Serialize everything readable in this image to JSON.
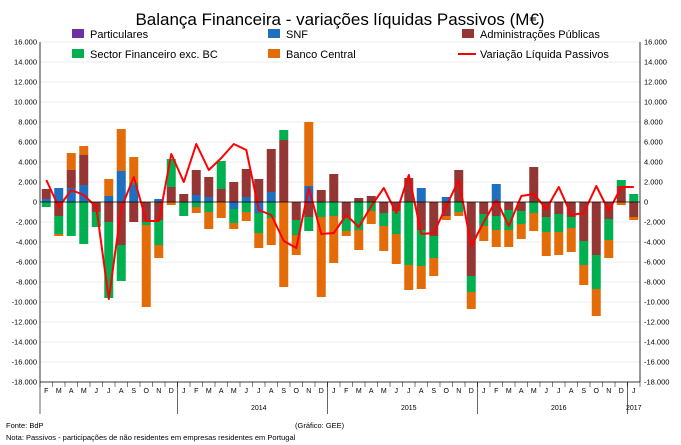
{
  "chart_data": {
    "type": "bar",
    "title": "Balança Financeira - variações líquidas Passivos (M€)",
    "ylim": [
      -18000,
      16000
    ],
    "yticks": [
      16000,
      14000,
      12000,
      10000,
      8000,
      6000,
      4000,
      2000,
      0,
      -2000,
      -4000,
      -6000,
      -8000,
      -10000,
      -12000,
      -14000,
      -16000,
      -18000
    ],
    "ytick_labels": [
      "16.000",
      "14.000",
      "12.000",
      "10.000",
      "8.000",
      "6.000",
      "4.000",
      "2.000",
      "0",
      "-2.000",
      "-4.000",
      "-6.000",
      "-8.000",
      "-10.000",
      "-12.000",
      "-14.000",
      "-16.000",
      "-18.000"
    ],
    "categories": [
      "F",
      "M",
      "A",
      "M",
      "J",
      "J",
      "A",
      "S",
      "O",
      "N",
      "D",
      "J",
      "F",
      "M",
      "A",
      "M",
      "J",
      "J",
      "A",
      "S",
      "O",
      "N",
      "D",
      "J",
      "F",
      "M",
      "A",
      "M",
      "J",
      "J",
      "A",
      "S",
      "O",
      "N",
      "D",
      "J",
      "F",
      "M",
      "A",
      "M",
      "J",
      "J",
      "A",
      "S",
      "O",
      "N",
      "D",
      "J"
    ],
    "year_labels": [
      {
        "label": "2014",
        "index": 17
      },
      {
        "label": "2015",
        "index": 29
      },
      {
        "label": "2016",
        "index": 41
      },
      {
        "label": "2017",
        "index": 47
      }
    ],
    "series": [
      {
        "name": "Particulares",
        "color": "#7030a0",
        "values": [
          0,
          0,
          0,
          0,
          0,
          0,
          0,
          0,
          0,
          0,
          0,
          0,
          0,
          0,
          0,
          0,
          0,
          0,
          0,
          0,
          0,
          0,
          0,
          0,
          0,
          0,
          0,
          0,
          0,
          0,
          0,
          0,
          0,
          0,
          0,
          0,
          0,
          0,
          0,
          0,
          0,
          0,
          0,
          0,
          0,
          0,
          0,
          0
        ]
      },
      {
        "name": "SNF",
        "color": "#1f6fbf",
        "values": [
          300,
          1400,
          1400,
          1700,
          0,
          600,
          3100,
          1700,
          0,
          300,
          0,
          0,
          700,
          500,
          0,
          -700,
          500,
          -1100,
          1000,
          0,
          0,
          1600,
          0,
          0,
          0,
          0,
          0,
          0,
          0,
          0,
          1400,
          0,
          500,
          0,
          0,
          0,
          1800,
          0,
          0,
          0,
          0,
          0,
          0,
          0,
          0,
          0,
          0,
          0
        ]
      },
      {
        "name": "Administrações Públicas",
        "color": "#943634",
        "values": [
          1000,
          -1400,
          1800,
          3000,
          -1000,
          -2000,
          -4300,
          -2000,
          -2000,
          -1800,
          1500,
          800,
          2500,
          2000,
          1300,
          2000,
          2800,
          2300,
          4300,
          6200,
          -1800,
          -1500,
          1200,
          2800,
          -1600,
          400,
          600,
          -1100,
          -900,
          2400,
          -2800,
          -3400,
          -1400,
          3200,
          -7400,
          -1200,
          -1400,
          -800,
          -900,
          3500,
          -1500,
          -1200,
          -1500,
          -3900,
          -5300,
          -1700,
          1600,
          -1500
        ]
      },
      {
        "name": "Sector Financeiro exc. BC",
        "color": "#00b050",
        "values": [
          -500,
          -1800,
          -3400,
          -4200,
          -1500,
          -7600,
          -3600,
          200,
          -300,
          -2500,
          2800,
          -1400,
          -500,
          -1000,
          2800,
          -1400,
          -1000,
          -2000,
          -1600,
          1000,
          -1500,
          -1400,
          -1500,
          -1400,
          -1300,
          -2800,
          -900,
          -1300,
          -2300,
          -6300,
          -3600,
          -2200,
          0,
          -1000,
          -1600,
          -1200,
          -1400,
          -2000,
          -1300,
          -1100,
          -1500,
          -1800,
          -1100,
          -2400,
          -3400,
          -2100,
          600,
          800
        ]
      },
      {
        "name": "Banco Central",
        "color": "#e36c09",
        "values": [
          0,
          -200,
          1700,
          900,
          0,
          1700,
          4200,
          2600,
          -8200,
          -1300,
          -300,
          0,
          -600,
          -1700,
          -1600,
          -600,
          -900,
          -1500,
          -2700,
          -8500,
          -2000,
          6400,
          -8000,
          -4700,
          -500,
          -2000,
          -1300,
          -2500,
          -3000,
          -2500,
          -2300,
          -1800,
          -400,
          -400,
          -1700,
          -1500,
          -1700,
          -1700,
          -1500,
          -1800,
          -2400,
          -2300,
          -2400,
          -2000,
          -2700,
          -1800,
          -300,
          -300
        ]
      },
      {
        "name": "Variação Líquida Passivos",
        "color": "#ff0000",
        "type": "line",
        "values": [
          2200,
          -500,
          1200,
          700,
          -500,
          -9700,
          -600,
          2500,
          -1900,
          -1900,
          4800,
          2000,
          5800,
          3200,
          4400,
          5800,
          5200,
          -800,
          -1300,
          -3900,
          -4600,
          1400,
          -3200,
          -3100,
          -1300,
          -2500,
          -400,
          1400,
          -1100,
          2700,
          -3200,
          -3100,
          -400,
          2200,
          -4400,
          -2000,
          200,
          -2400,
          600,
          800,
          -700,
          1500,
          -1300,
          -1100,
          1600,
          -900,
          1500,
          1500
        ]
      }
    ],
    "legend": [
      {
        "label": "Particulares",
        "color": "#7030a0"
      },
      {
        "label": "SNF",
        "color": "#1f6fbf"
      },
      {
        "label": "Administrações Públicas",
        "color": "#943634"
      },
      {
        "label": "Sector Financeiro exc. BC",
        "color": "#00b050"
      },
      {
        "label": "Banco Central",
        "color": "#e36c09"
      },
      {
        "label": "Variação Líquida Passivos",
        "color": "#ff0000"
      }
    ],
    "footnote_source": "Fonte: BdP",
    "footnote_credit": "(Gráfico: GEE)",
    "footnote_note": "Nota: Passivos - participações de não residentes em empresas residentes em Portugal"
  }
}
